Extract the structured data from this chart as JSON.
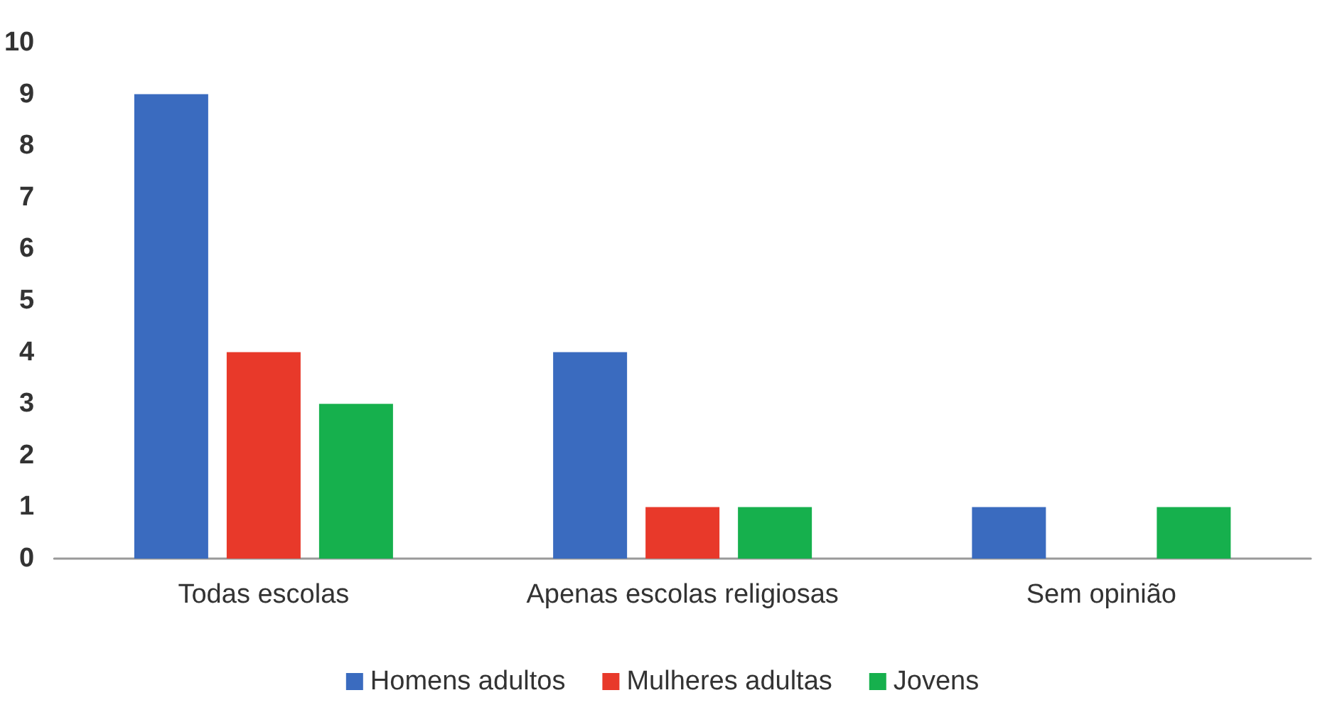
{
  "chart_data": {
    "type": "bar",
    "categories": [
      "Todas escolas",
      "Apenas escolas religiosas",
      "Sem opinião"
    ],
    "series": [
      {
        "name": "Homens adultos",
        "color": "#3a6bbf",
        "values": [
          9,
          4,
          1
        ]
      },
      {
        "name": "Mulheres adultas",
        "color": "#e8392a",
        "values": [
          4,
          1,
          0
        ]
      },
      {
        "name": "Jovens",
        "color": "#16b04d",
        "values": [
          3,
          1,
          1
        ]
      }
    ],
    "ylim": [
      0,
      10
    ],
    "yticks": [
      0,
      1,
      2,
      3,
      4,
      5,
      6,
      7,
      8,
      9,
      10
    ],
    "grid": false,
    "legend": "bottom"
  }
}
